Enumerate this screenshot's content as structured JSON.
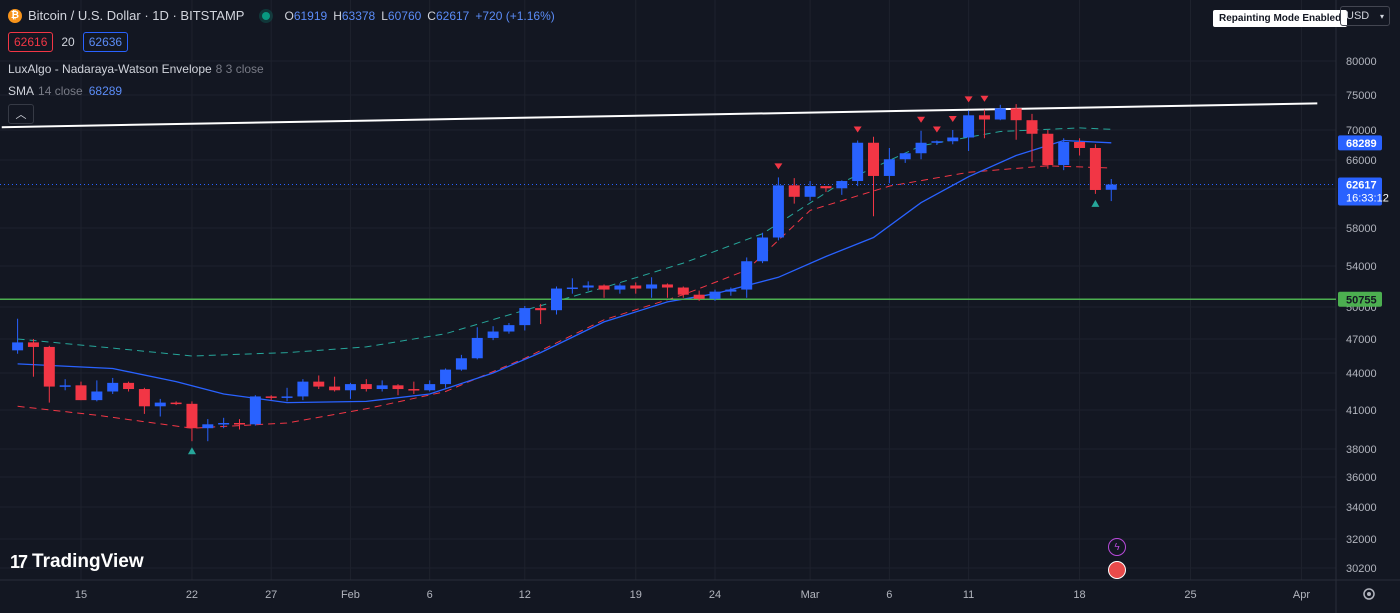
{
  "header": {
    "coin_symbol": "₿",
    "title": "Bitcoin / U.S. Dollar · 1D · BITSTAMP",
    "ohlc": {
      "o_label": "O",
      "o": "61919",
      "h_label": "H",
      "h": "63378",
      "l_label": "L",
      "l": "60760",
      "c_label": "C",
      "c": "62617",
      "change": "+720 (+1.16%)"
    },
    "sell_price": "62616",
    "spread": "20",
    "buy_price": "62636"
  },
  "indicators": {
    "luxalgo_name": "LuxAlgo - Nadaraya-Watson Envelope",
    "luxalgo_args": "8 3 close",
    "sma_name": "SMA",
    "sma_args": "14 close",
    "sma_value": "68289",
    "collapse_icon": "chevron-up-icon"
  },
  "toolbar": {
    "repainting_label": "Repainting Mode Enabled",
    "currency": "USD"
  },
  "logo": {
    "text": "TradingView"
  },
  "colors": {
    "background": "#131722",
    "up": "#2962ff",
    "down": "#f23645",
    "sma": "#2962ff",
    "upper_band": "#26a69a",
    "lower_band": "#f23645",
    "resistance_line": "#ffffff",
    "support_line": "#4caf50"
  },
  "chart_data": {
    "type": "candlestick",
    "title": "Bitcoin / U.S. Dollar · 1D · BITSTAMP",
    "y_ticks": [
      80000,
      75000,
      70000,
      66000,
      62000,
      58000,
      54000,
      50000,
      47000,
      44000,
      41000,
      38000,
      36000,
      34000,
      32000,
      30200
    ],
    "x_labels": [
      "15",
      "22",
      "27",
      "Feb",
      "6",
      "12",
      "19",
      "24",
      "Mar",
      "6",
      "11",
      "18",
      "25",
      "Apr"
    ],
    "x_label_dates": [
      "2024-01-15",
      "2024-01-22",
      "2024-01-27",
      "2024-02-01",
      "2024-02-06",
      "2024-02-12",
      "2024-02-19",
      "2024-02-24",
      "2024-03-01",
      "2024-03-06",
      "2024-03-11",
      "2024-03-18",
      "2024-03-25",
      "2024-04-01"
    ],
    "candles": [
      {
        "date": "2024-01-11",
        "o": 46000,
        "h": 48900,
        "l": 45700,
        "c": 46700
      },
      {
        "date": "2024-01-12",
        "o": 46700,
        "h": 47000,
        "l": 43700,
        "c": 46300
      },
      {
        "date": "2024-01-13",
        "o": 46300,
        "h": 46400,
        "l": 41600,
        "c": 42900
      },
      {
        "date": "2024-01-14",
        "o": 42900,
        "h": 43500,
        "l": 42600,
        "c": 43000
      },
      {
        "date": "2024-01-15",
        "o": 43000,
        "h": 43300,
        "l": 41800,
        "c": 41800
      },
      {
        "date": "2024-01-16",
        "o": 41800,
        "h": 43400,
        "l": 41700,
        "c": 42500
      },
      {
        "date": "2024-01-17",
        "o": 42500,
        "h": 43600,
        "l": 42300,
        "c": 43200
      },
      {
        "date": "2024-01-18",
        "o": 43200,
        "h": 43300,
        "l": 42500,
        "c": 42700
      },
      {
        "date": "2024-01-19",
        "o": 42700,
        "h": 42800,
        "l": 40700,
        "c": 41300
      },
      {
        "date": "2024-01-20",
        "o": 41300,
        "h": 41900,
        "l": 40500,
        "c": 41600
      },
      {
        "date": "2024-01-21",
        "o": 41600,
        "h": 41700,
        "l": 41400,
        "c": 41500
      },
      {
        "date": "2024-01-22",
        "o": 41500,
        "h": 41700,
        "l": 38600,
        "c": 39600
      },
      {
        "date": "2024-01-23",
        "o": 39600,
        "h": 40300,
        "l": 38600,
        "c": 39900
      },
      {
        "date": "2024-01-24",
        "o": 39900,
        "h": 40400,
        "l": 39600,
        "c": 40000
      },
      {
        "date": "2024-01-25",
        "o": 40000,
        "h": 40300,
        "l": 39500,
        "c": 39900
      },
      {
        "date": "2024-01-26",
        "o": 39900,
        "h": 42200,
        "l": 39800,
        "c": 42100
      },
      {
        "date": "2024-01-27",
        "o": 42100,
        "h": 42200,
        "l": 41800,
        "c": 42000
      },
      {
        "date": "2024-01-28",
        "o": 42000,
        "h": 42800,
        "l": 41700,
        "c": 42100
      },
      {
        "date": "2024-01-29",
        "o": 42100,
        "h": 43500,
        "l": 41800,
        "c": 43300
      },
      {
        "date": "2024-01-30",
        "o": 43300,
        "h": 43800,
        "l": 42700,
        "c": 42900
      },
      {
        "date": "2024-01-31",
        "o": 42900,
        "h": 43700,
        "l": 42500,
        "c": 42600
      },
      {
        "date": "2024-02-01",
        "o": 42600,
        "h": 43200,
        "l": 41900,
        "c": 43100
      },
      {
        "date": "2024-02-02",
        "o": 43100,
        "h": 43500,
        "l": 42500,
        "c": 42700
      },
      {
        "date": "2024-02-03",
        "o": 42700,
        "h": 43400,
        "l": 42500,
        "c": 43000
      },
      {
        "date": "2024-02-04",
        "o": 43000,
        "h": 43100,
        "l": 42200,
        "c": 42700
      },
      {
        "date": "2024-02-05",
        "o": 42700,
        "h": 43300,
        "l": 42300,
        "c": 42600
      },
      {
        "date": "2024-02-06",
        "o": 42600,
        "h": 43400,
        "l": 42500,
        "c": 43100
      },
      {
        "date": "2024-02-07",
        "o": 43100,
        "h": 44400,
        "l": 42800,
        "c": 44300
      },
      {
        "date": "2024-02-08",
        "o": 44300,
        "h": 45600,
        "l": 44200,
        "c": 45300
      },
      {
        "date": "2024-02-09",
        "o": 45300,
        "h": 48100,
        "l": 45200,
        "c": 47100
      },
      {
        "date": "2024-02-10",
        "o": 47100,
        "h": 48200,
        "l": 46900,
        "c": 47700
      },
      {
        "date": "2024-02-11",
        "o": 47700,
        "h": 48500,
        "l": 47500,
        "c": 48300
      },
      {
        "date": "2024-02-12",
        "o": 48300,
        "h": 50100,
        "l": 47800,
        "c": 49900
      },
      {
        "date": "2024-02-13",
        "o": 49900,
        "h": 50300,
        "l": 48400,
        "c": 49700
      },
      {
        "date": "2024-02-14",
        "o": 49700,
        "h": 52000,
        "l": 49300,
        "c": 51800
      },
      {
        "date": "2024-02-15",
        "o": 51800,
        "h": 52800,
        "l": 51300,
        "c": 51900
      },
      {
        "date": "2024-02-16",
        "o": 51900,
        "h": 52500,
        "l": 51600,
        "c": 52100
      },
      {
        "date": "2024-02-17",
        "o": 52100,
        "h": 52200,
        "l": 50900,
        "c": 51700
      },
      {
        "date": "2024-02-18",
        "o": 51700,
        "h": 52300,
        "l": 51300,
        "c": 52100
      },
      {
        "date": "2024-02-19",
        "o": 52100,
        "h": 52400,
        "l": 51300,
        "c": 51800
      },
      {
        "date": "2024-02-20",
        "o": 51800,
        "h": 52900,
        "l": 50900,
        "c": 52200
      },
      {
        "date": "2024-02-21",
        "o": 52200,
        "h": 52300,
        "l": 50900,
        "c": 51900
      },
      {
        "date": "2024-02-22",
        "o": 51900,
        "h": 52000,
        "l": 50900,
        "c": 51200
      },
      {
        "date": "2024-02-23",
        "o": 51200,
        "h": 51600,
        "l": 50600,
        "c": 50800
      },
      {
        "date": "2024-02-24",
        "o": 50800,
        "h": 51700,
        "l": 50600,
        "c": 51500
      },
      {
        "date": "2024-02-25",
        "o": 51500,
        "h": 51900,
        "l": 51100,
        "c": 51700
      },
      {
        "date": "2024-02-26",
        "o": 51700,
        "h": 54900,
        "l": 50900,
        "c": 54500
      },
      {
        "date": "2024-02-27",
        "o": 54500,
        "h": 57500,
        "l": 54300,
        "c": 57000
      },
      {
        "date": "2024-02-28",
        "o": 57000,
        "h": 63600,
        "l": 56700,
        "c": 62500
      },
      {
        "date": "2024-02-29",
        "o": 62500,
        "h": 63500,
        "l": 60500,
        "c": 61200
      },
      {
        "date": "2024-03-01",
        "o": 61200,
        "h": 63100,
        "l": 60800,
        "c": 62400
      },
      {
        "date": "2024-03-02",
        "o": 62400,
        "h": 62400,
        "l": 61700,
        "c": 62100
      },
      {
        "date": "2024-03-03",
        "o": 62100,
        "h": 63200,
        "l": 61400,
        "c": 63100
      },
      {
        "date": "2024-03-04",
        "o": 63100,
        "h": 68600,
        "l": 62400,
        "c": 68300
      },
      {
        "date": "2024-03-05",
        "o": 68300,
        "h": 69100,
        "l": 59200,
        "c": 63800
      },
      {
        "date": "2024-03-06",
        "o": 63800,
        "h": 67600,
        "l": 62800,
        "c": 66100
      },
      {
        "date": "2024-03-07",
        "o": 66100,
        "h": 67000,
        "l": 65600,
        "c": 66900
      },
      {
        "date": "2024-03-08",
        "o": 66900,
        "h": 69900,
        "l": 66100,
        "c": 68300
      },
      {
        "date": "2024-03-09",
        "o": 68300,
        "h": 68600,
        "l": 68000,
        "c": 68500
      },
      {
        "date": "2024-03-10",
        "o": 68500,
        "h": 70000,
        "l": 68100,
        "c": 69000
      },
      {
        "date": "2024-03-11",
        "o": 69000,
        "h": 72800,
        "l": 67200,
        "c": 72100
      },
      {
        "date": "2024-03-12",
        "o": 72100,
        "h": 72900,
        "l": 68900,
        "c": 71500
      },
      {
        "date": "2024-03-13",
        "o": 71500,
        "h": 73600,
        "l": 71400,
        "c": 73100
      },
      {
        "date": "2024-03-14",
        "o": 73100,
        "h": 73700,
        "l": 68700,
        "c": 71400
      },
      {
        "date": "2024-03-15",
        "o": 71400,
        "h": 72300,
        "l": 65700,
        "c": 69500
      },
      {
        "date": "2024-03-16",
        "o": 69500,
        "h": 70000,
        "l": 64800,
        "c": 65300
      },
      {
        "date": "2024-03-17",
        "o": 65300,
        "h": 68900,
        "l": 64600,
        "c": 68400
      },
      {
        "date": "2024-03-18",
        "o": 68400,
        "h": 68900,
        "l": 66600,
        "c": 67600
      },
      {
        "date": "2024-03-19",
        "o": 67600,
        "h": 68100,
        "l": 61500,
        "c": 61900
      },
      {
        "date": "2024-03-20",
        "o": 61919,
        "h": 63378,
        "l": 60760,
        "c": 62617
      }
    ],
    "sma_14": [
      {
        "date": "2024-01-11",
        "v": 44800
      },
      {
        "date": "2024-01-17",
        "v": 44400
      },
      {
        "date": "2024-01-21",
        "v": 43300
      },
      {
        "date": "2024-01-24",
        "v": 42300
      },
      {
        "date": "2024-01-28",
        "v": 41600
      },
      {
        "date": "2024-02-02",
        "v": 41700
      },
      {
        "date": "2024-02-06",
        "v": 42300
      },
      {
        "date": "2024-02-10",
        "v": 44000
      },
      {
        "date": "2024-02-13",
        "v": 45800
      },
      {
        "date": "2024-02-17",
        "v": 48600
      },
      {
        "date": "2024-02-21",
        "v": 50500
      },
      {
        "date": "2024-02-24",
        "v": 51300
      },
      {
        "date": "2024-02-28",
        "v": 52900
      },
      {
        "date": "2024-03-02",
        "v": 55000
      },
      {
        "date": "2024-03-05",
        "v": 57000
      },
      {
        "date": "2024-03-08",
        "v": 60600
      },
      {
        "date": "2024-03-11",
        "v": 63700
      },
      {
        "date": "2024-03-14",
        "v": 66600
      },
      {
        "date": "2024-03-17",
        "v": 68600
      },
      {
        "date": "2024-03-20",
        "v": 68289
      }
    ],
    "nw_upper": [
      {
        "date": "2024-01-11",
        "v": 47000
      },
      {
        "date": "2024-01-17",
        "v": 46200
      },
      {
        "date": "2024-01-22",
        "v": 45500
      },
      {
        "date": "2024-01-28",
        "v": 45800
      },
      {
        "date": "2024-02-02",
        "v": 46300
      },
      {
        "date": "2024-02-07",
        "v": 47500
      },
      {
        "date": "2024-02-12",
        "v": 49700
      },
      {
        "date": "2024-02-17",
        "v": 51900
      },
      {
        "date": "2024-02-22",
        "v": 54300
      },
      {
        "date": "2024-02-27",
        "v": 57400
      },
      {
        "date": "2024-03-03",
        "v": 62900
      },
      {
        "date": "2024-03-08",
        "v": 67900
      },
      {
        "date": "2024-03-13",
        "v": 69800
      },
      {
        "date": "2024-03-18",
        "v": 70300
      },
      {
        "date": "2024-03-20",
        "v": 70100
      }
    ],
    "nw_lower": [
      {
        "date": "2024-01-11",
        "v": 41300
      },
      {
        "date": "2024-01-16",
        "v": 40600
      },
      {
        "date": "2024-01-22",
        "v": 39600
      },
      {
        "date": "2024-01-28",
        "v": 40000
      },
      {
        "date": "2024-02-02",
        "v": 41100
      },
      {
        "date": "2024-02-07",
        "v": 42500
      },
      {
        "date": "2024-02-12",
        "v": 45300
      },
      {
        "date": "2024-02-17",
        "v": 48800
      },
      {
        "date": "2024-02-22",
        "v": 51200
      },
      {
        "date": "2024-02-26",
        "v": 53600
      },
      {
        "date": "2024-03-01",
        "v": 59800
      },
      {
        "date": "2024-03-06",
        "v": 62400
      },
      {
        "date": "2024-03-11",
        "v": 64300
      },
      {
        "date": "2024-03-16",
        "v": 65200
      },
      {
        "date": "2024-03-20",
        "v": 64900
      }
    ],
    "resistance_line": [
      {
        "date": "2024-01-10",
        "v": 70400
      },
      {
        "date": "2024-04-02",
        "v": 73800
      }
    ],
    "support_line": {
      "v": 50755
    },
    "sell_markers": [
      "2024-02-28",
      "2024-03-04",
      "2024-03-08",
      "2024-03-09",
      "2024-03-10",
      "2024-03-11",
      "2024-03-12"
    ],
    "buy_markers": [
      "2024-01-22",
      "2024-03-19"
    ],
    "price_labels": [
      {
        "text": "68289",
        "v": 68289,
        "color": "#2962ff"
      },
      {
        "text": "62617",
        "v": 62617,
        "color": "#2962ff",
        "sub": "16:33:12"
      },
      {
        "text": "50755",
        "v": 50755,
        "color": "#4caf50",
        "text_color": "#131722"
      }
    ],
    "last_price": 62617,
    "countdown": "16:33:12"
  }
}
